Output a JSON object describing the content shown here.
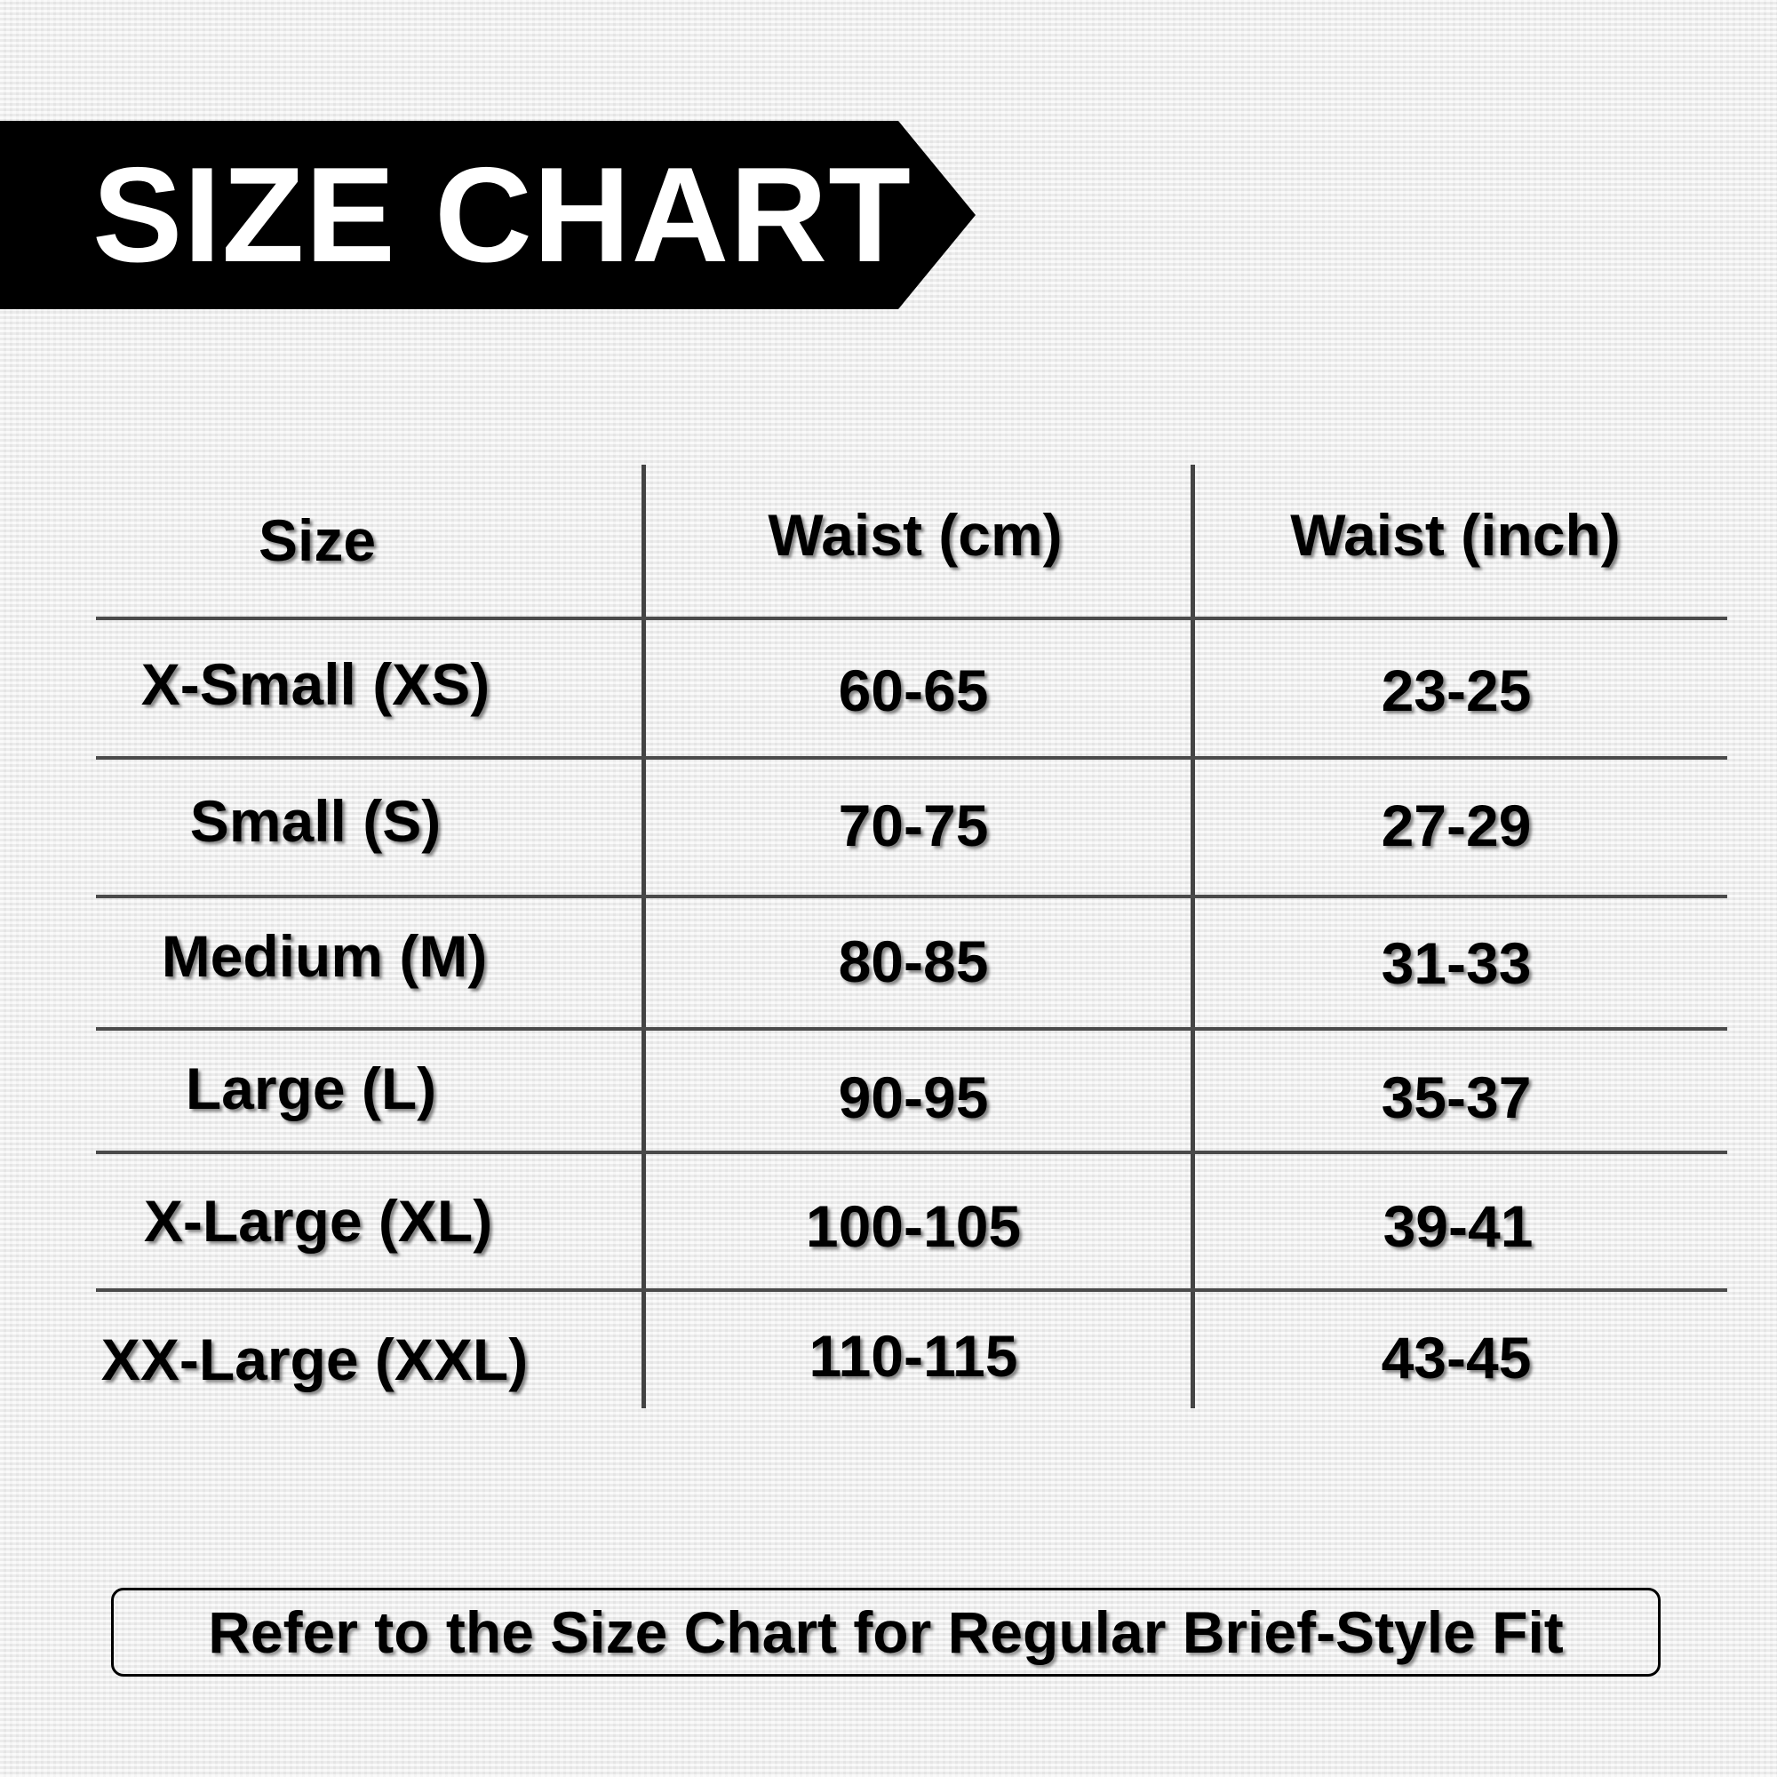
{
  "title": "SIZE CHART",
  "table": {
    "headers": [
      "Size",
      "Waist (cm)",
      "Waist (inch)"
    ],
    "rows": [
      [
        "X-Small (XS)",
        "60-65",
        "23-25"
      ],
      [
        "Small (S)",
        "70-75",
        "27-29"
      ],
      [
        "Medium (M)",
        "80-85",
        "31-33"
      ],
      [
        "Large (L)",
        "90-95",
        "35-37"
      ],
      [
        "X-Large (XL)",
        "100-105",
        "39-41"
      ],
      [
        "XX-Large (XXL)",
        "110-115",
        "43-45"
      ]
    ]
  },
  "note": "Refer to the Size Chart for Regular Brief-Style Fit",
  "colors": {
    "banner": "#000000",
    "text": "#000000",
    "background": "#efefef"
  }
}
